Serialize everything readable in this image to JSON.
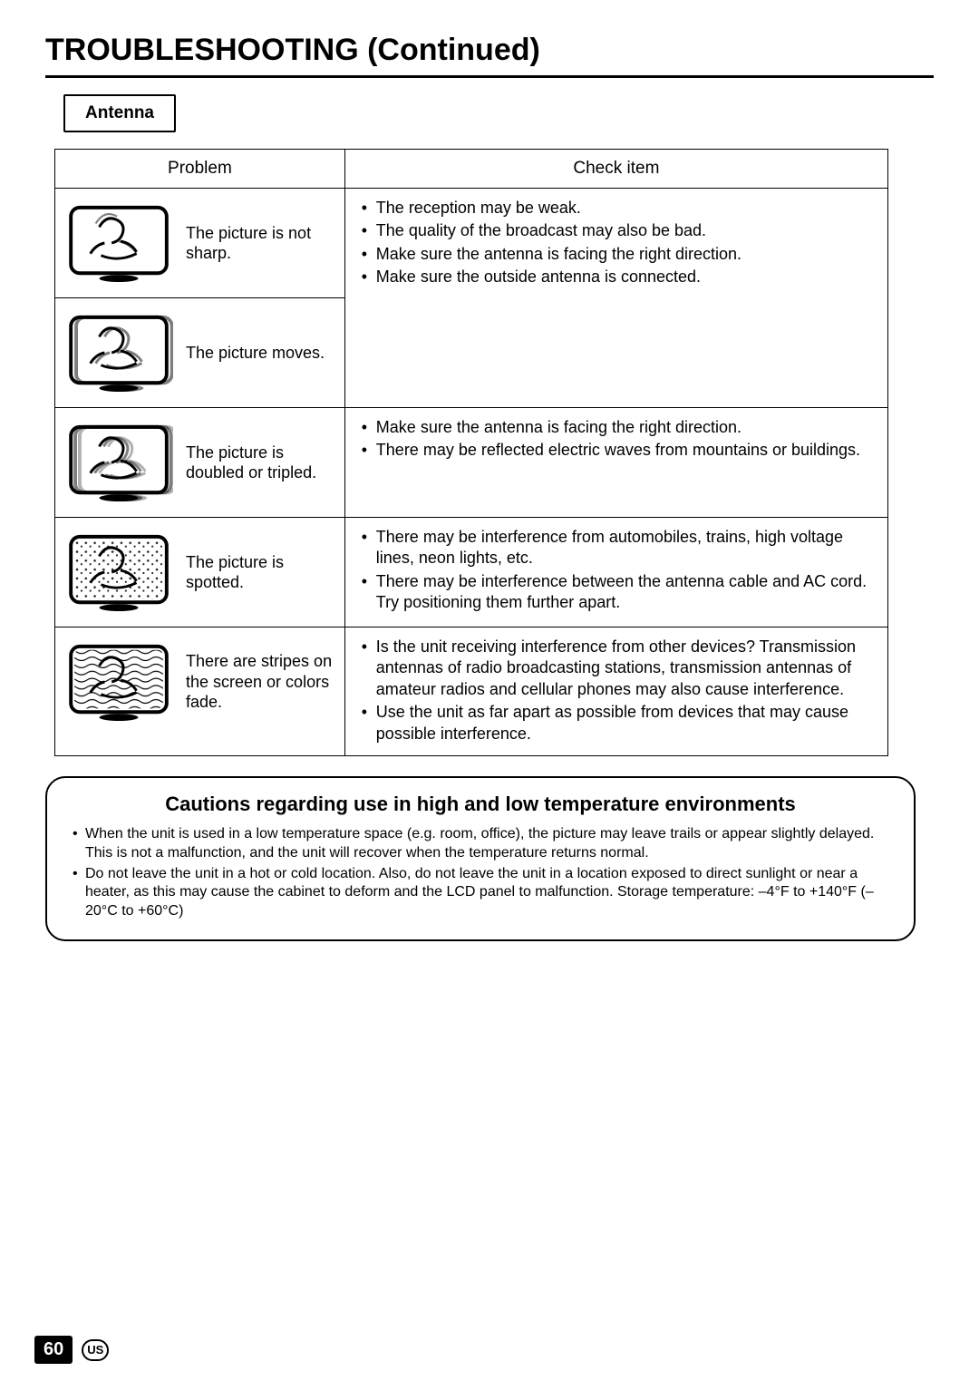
{
  "page_title": "TROUBLESHOOTING (Continued)",
  "section_label": "Antenna",
  "table": {
    "headers": {
      "problem": "Problem",
      "check": "Check item"
    },
    "rows": [
      {
        "icon": "tv-blurry",
        "problem": "The picture is not sharp.",
        "checks": [
          "The reception may be weak.",
          "The quality of the broadcast may also be bad.",
          "Make sure the antenna is facing the right direction.",
          "Make sure the outside antenna is connected."
        ],
        "share_check_with_prev": false,
        "has_check_cell": true,
        "check_rowspan": 2
      },
      {
        "icon": "tv-moves",
        "problem": "The picture moves.",
        "checks": [],
        "has_check_cell": false
      },
      {
        "icon": "tv-double",
        "problem": "The picture is doubled or tripled.",
        "checks": [
          "Make sure the antenna is facing the right direction.",
          "There may be reflected electric waves from mountains or buildings."
        ],
        "has_check_cell": true,
        "check_rowspan": 1
      },
      {
        "icon": "tv-spotted",
        "problem": "The picture is spotted.",
        "checks": [
          "There may be interference from automobiles, trains, high voltage lines, neon lights, etc.",
          "There may be interference between the antenna cable and AC cord. Try positioning them further apart."
        ],
        "has_check_cell": true,
        "check_rowspan": 1
      },
      {
        "icon": "tv-stripes",
        "problem": "There are stripes on the screen or colors fade.",
        "checks": [
          "Is the unit receiving interference from other devices? Transmission antennas of radio broadcasting stations, transmission antennas of amateur radios and cellular phones may also cause interference.",
          "Use the unit as far apart as possible from devices that may cause possible interference."
        ],
        "has_check_cell": true,
        "check_rowspan": 1
      }
    ]
  },
  "caution": {
    "title": "Cautions regarding use in high and low temperature environments",
    "items": [
      "When the unit is used in a low temperature space (e.g. room, office), the picture may leave trails or appear slightly delayed. This is not a malfunction, and the unit will recover when the temperature returns normal.",
      "Do not leave the unit in a hot or cold location. Also, do not leave the unit in a location exposed to direct sunlight or near a heater, as this may cause the cabinet to deform and the LCD panel to malfunction. Storage temperature: –4°F to +140°F (–20°C to +60°C)"
    ]
  },
  "footer": {
    "page_number": "60",
    "region": "US"
  }
}
